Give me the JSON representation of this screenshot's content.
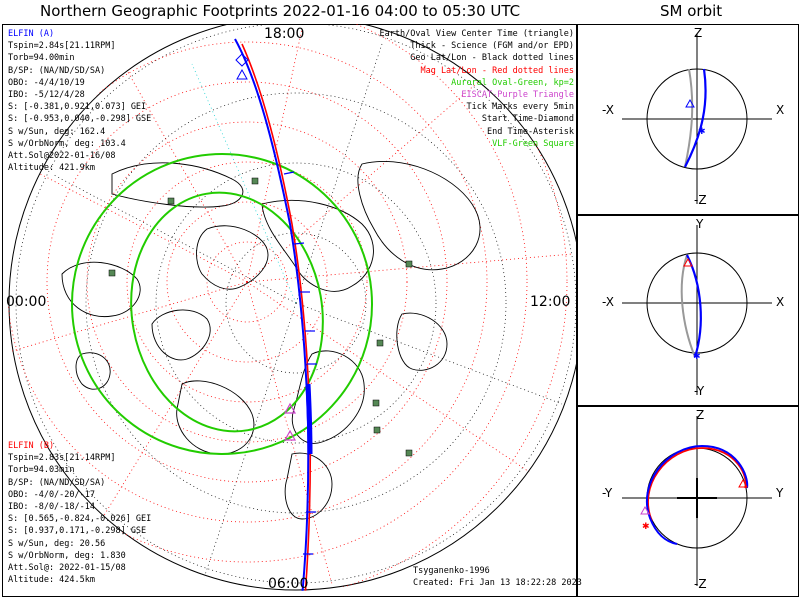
{
  "header": {
    "title": "Northern Geographic Footprints 2022-01-16 04:00 to 05:30 UTC",
    "orbit_title": "SM orbit"
  },
  "map": {
    "hour_labels": {
      "top": "18:00",
      "left": "00:00",
      "right": "12:00",
      "bottom": "06:00"
    },
    "colors": {
      "elfin_a": "#0000ff",
      "elfin_b": "#ff0000",
      "oval": "#22cc00",
      "vlf": "#558855",
      "eiscat": "#cc44cc",
      "grid_geo": "#000000",
      "grid_mag": "#ff0000"
    }
  },
  "elfin_a": {
    "name": "ELFIN (A)",
    "lines": [
      "Tspin=2.84s[21.11RPM]",
      "Torb=94.00min",
      "B/SP: (NA/ND/SD/SA)",
      "OBO: -4/4/10/19",
      "IBO: -5/12/4/28",
      "S: [-0.381,0.921,0.073] GEI",
      "S: [-0.953,0.040,-0.298] GSE",
      "S w/Sun, deg: 162.4",
      "S w/OrbNorm, deg: 103.4",
      "Att.Sol@2022-01-16/08",
      "Altitude: 421.9km"
    ]
  },
  "elfin_b": {
    "name": "ELFIN (B)",
    "lines": [
      "Tspin=2.83s[21.14RPM]",
      "Torb=94.03min",
      "B/SP: (NA/ND/SD/SA)",
      "OBO: -4/0/-20/-17",
      "IBO: -8/0/-18/-14",
      "S: [0.565,-0.824,-0.026] GEI",
      "S: [0.937,0.171,-0.298] GSE",
      "S w/Sun, deg: 20.56",
      "S w/OrbNorm, deg: 1.830",
      "Att.Sol@: 2022-01-15/08",
      "Altitude: 424.5km"
    ]
  },
  "legend": {
    "items": [
      {
        "text": "Earth/Oval View Center Time (triangle)",
        "color": "#000000"
      },
      {
        "text": "Thick - Science (FGM and/or EPD)",
        "color": "#000000"
      },
      {
        "text": "Geo Lat/Lon - Black dotted lines",
        "color": "#000000"
      },
      {
        "text": "Mag Lat/Lon - Red dotted lines",
        "color": "#ff0000"
      },
      {
        "text": "Auroral Oval-Green, kp=2",
        "color": "#22cc00"
      },
      {
        "text": "EISCAT-Purple Triangle",
        "color": "#cc44cc"
      },
      {
        "text": "Tick Marks every 5min",
        "color": "#000000"
      },
      {
        "text": "Start Time-Diamond",
        "color": "#000000"
      },
      {
        "text": "End Time-Asterisk",
        "color": "#000000"
      },
      {
        "text": "VLF-Green Square",
        "color": "#22cc00"
      }
    ]
  },
  "credits": {
    "model": "Tsyganenko-1996",
    "created": "Created: Fri Jan 13 18:22:28 2023"
  },
  "orbit_panels": [
    {
      "top": "Z",
      "bottom": "-Z",
      "left": "-X",
      "right": "X"
    },
    {
      "top": "Y",
      "bottom": "-Y",
      "left": "-X",
      "right": "X"
    },
    {
      "top": "Z",
      "bottom": "-Z",
      "left": "-Y",
      "right": "Y"
    }
  ]
}
